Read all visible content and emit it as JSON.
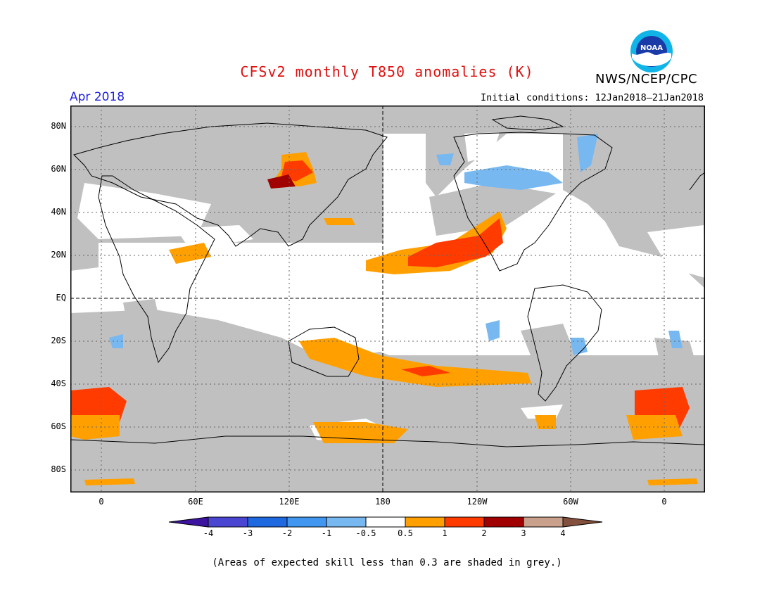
{
  "header": {
    "title": "CFSv2 monthly T850 anomalies (K)",
    "agency": "NWS/NCEP/CPC",
    "logo_text": "NOAA",
    "valid_month": "Apr 2018",
    "initial_conditions": "Initial conditions: 12Jan2018–21Jan2018"
  },
  "map": {
    "lat_labels": [
      "80N",
      "60N",
      "40N",
      "20N",
      "EQ",
      "20S",
      "40S",
      "60S",
      "80S"
    ],
    "lon_labels": [
      "0",
      "60E",
      "120E",
      "180",
      "120W",
      "60W",
      "0"
    ],
    "grey_meaning": "skill < 0.3",
    "regions": [
      {
        "name": "Gulf of Alaska / California warm band",
        "category": "1 to 2",
        "color": "#ff3b00"
      },
      {
        "name": "Central North Pacific",
        "category": "0.5 to 1",
        "color": "#ffa000"
      },
      {
        "name": "Central Siberia",
        "category": "2 to 3",
        "color": "#a00000"
      },
      {
        "name": "South Atlantic",
        "category": "1 to 2",
        "color": "#ff3b00"
      },
      {
        "name": "South Pacific",
        "category": "0.5 to 1",
        "color": "#ffa000"
      },
      {
        "name": "Western Canada / Alaska",
        "category": "-1 to -0.5",
        "color": "#78b8f0"
      }
    ]
  },
  "legend": {
    "labels": [
      "-4",
      "-3",
      "-2",
      "-1",
      "-0.5",
      "0.5",
      "1",
      "2",
      "3",
      "4"
    ],
    "colors": [
      "#3c14a0",
      "#4b46d2",
      "#1f69e0",
      "#4196f0",
      "#78b8f0",
      "#ffffff",
      "#ffa000",
      "#ff3b00",
      "#a00000",
      "#c8a08c",
      "#82503c"
    ]
  },
  "footnote": "(Areas of expected skill less than 0.3 are shaded in grey.)"
}
